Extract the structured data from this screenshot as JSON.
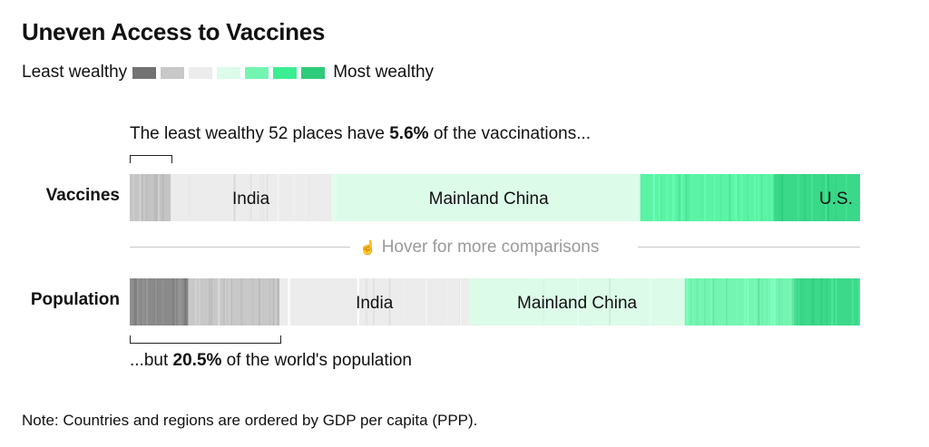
{
  "title": "Uneven Access to Vaccines",
  "legend": {
    "left_label": "Least wealthy",
    "right_label": "Most wealthy",
    "colors": [
      "#737373",
      "#c8c8c8",
      "#ececec",
      "#dcfbe9",
      "#74f5b2",
      "#3cee92",
      "#2ecc7a"
    ]
  },
  "annotations": {
    "top_prefix": "The least wealthy 52 places have ",
    "top_value": "5.6%",
    "top_suffix": " of the vaccinations...",
    "bottom_prefix": "...but ",
    "bottom_value": "20.5%",
    "bottom_suffix": " of the world's population"
  },
  "hover_text": "Hover for more comparisons",
  "note": "Note: Countries and regions are ordered by GDP per capita (PPP).",
  "chart_data": {
    "type": "bar",
    "orientation": "horizontal-stacked-100",
    "rows": [
      {
        "name": "Vaccines",
        "segments": [
          {
            "group": "least-wealthy",
            "share": 5.6,
            "color": "#c4c4c4",
            "stripes": 14
          },
          {
            "group": "india",
            "share": 22.0,
            "color": "#ececec",
            "label": "India",
            "stripes": 10
          },
          {
            "group": "lower-middle",
            "share": 0.8,
            "color": "#e4fbee",
            "stripes": 0
          },
          {
            "group": "mainland-china",
            "share": 41.5,
            "color": "#dcfbe9",
            "label": "Mainland China",
            "stripes": 0
          },
          {
            "group": "upper-middle",
            "share": 18.3,
            "color": "#5bf3a6",
            "stripes": 42
          },
          {
            "group": "us",
            "share": 11.8,
            "color": "#3ad98a",
            "label": "U.S.",
            "stripes": 14
          }
        ]
      },
      {
        "name": "Population",
        "segments": [
          {
            "group": "least-wealthy-dark",
            "share": 8.0,
            "color": "#8a8a8a",
            "stripes": 30
          },
          {
            "group": "least-wealthy-light",
            "share": 12.5,
            "color": "#c8c8c8",
            "stripes": 24
          },
          {
            "group": "india",
            "share": 26.0,
            "color": "#ececec",
            "label": "India",
            "stripes": 12
          },
          {
            "group": "mainland-china",
            "share": 29.5,
            "color": "#dcfbe9",
            "label": "Mainland China",
            "stripes": 4
          },
          {
            "group": "upper-middle",
            "share": 15.0,
            "color": "#74f5b2",
            "stripes": 40
          },
          {
            "group": "most-wealthy",
            "share": 9.0,
            "color": "#3cd98a",
            "stripes": 18
          }
        ]
      }
    ]
  }
}
